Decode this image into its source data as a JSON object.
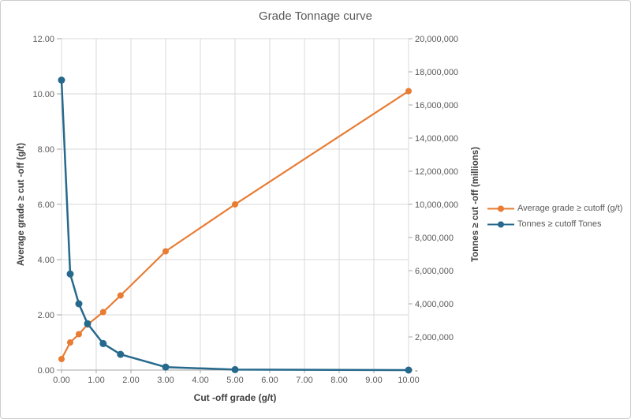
{
  "chart_data": {
    "type": "line",
    "title": "Grade Tonnage curve",
    "xlabel": "Cut -off grade (g/t)",
    "ylabel_left": "Average grade ≥ cut -off (g/t)",
    "ylabel_right": "Tonnes ≥ cut -off (millions)",
    "x": [
      0.0,
      0.25,
      0.5,
      0.75,
      1.2,
      1.7,
      3.0,
      5.0,
      10.0
    ],
    "series": [
      {
        "name": "Average grade ≥ cutoff (g/t)",
        "axis": "left",
        "color": "#E87C33",
        "marker_radius": 4,
        "line_width": 2.2,
        "values": [
          0.4,
          1.0,
          1.3,
          1.65,
          2.1,
          2.7,
          4.3,
          6.0,
          10.1
        ]
      },
      {
        "name": "Tonnes ≥ cutoff Tones",
        "axis": "right",
        "color": "#26698C",
        "marker_radius": 4.5,
        "line_width": 2.5,
        "values": [
          17500000,
          5800000,
          4000000,
          2800000,
          1600000,
          950000,
          180000,
          30000,
          0
        ]
      }
    ],
    "x_ticks": [
      "0.00",
      "1.00",
      "2.00",
      "3.00",
      "4.00",
      "5.00",
      "6.00",
      "7.00",
      "8.00",
      "9.00",
      "10.00"
    ],
    "y_left_ticks": [
      "12.00",
      "10.00",
      "8.00",
      "6.00",
      "4.00",
      "2.00",
      "0.00"
    ],
    "y_right_ticks": [
      "20,000,000",
      "18,000,000",
      "16,000,000",
      "14,000,000",
      "12,000,000",
      "10,000,000",
      "8,000,000",
      "6,000,000",
      "4,000,000",
      "2,000,000",
      "-"
    ],
    "axes": {
      "x_min": 0,
      "x_max": 10,
      "left_min": 0,
      "left_max": 12,
      "right_min": 0,
      "right_max": 20000000
    },
    "grid": true,
    "legend_position": "right",
    "style": {
      "grid_color": "#D9D9D9",
      "axis_line_color": "#A6A6A6",
      "tick_label_color": "#595959",
      "title_color": "#595959"
    }
  }
}
